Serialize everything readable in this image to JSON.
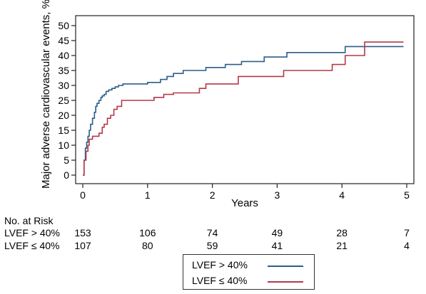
{
  "chart_data": {
    "type": "line",
    "title": "",
    "xlabel": "Years",
    "ylabel": "Major adverse cardiovascular events, %",
    "xlim": [
      0,
      5
    ],
    "ylim": [
      0,
      50
    ],
    "x_ticks": [
      "0",
      "1",
      "2",
      "3",
      "4",
      "5"
    ],
    "y_ticks": [
      "0",
      "5",
      "10",
      "15",
      "20",
      "25",
      "30",
      "35",
      "40",
      "45",
      "50"
    ],
    "grid": false,
    "legend_position": "bottom-center",
    "series": [
      {
        "name": "LVEF > 40%",
        "color": "#2b5d8a",
        "step": true,
        "x": [
          0,
          0.02,
          0.04,
          0.06,
          0.08,
          0.1,
          0.12,
          0.15,
          0.18,
          0.2,
          0.22,
          0.25,
          0.28,
          0.3,
          0.33,
          0.36,
          0.4,
          0.45,
          0.5,
          0.55,
          0.62,
          0.7,
          0.8,
          0.9,
          1.0,
          1.1,
          1.2,
          1.3,
          1.4,
          1.55,
          1.7,
          1.9,
          2.1,
          2.2,
          2.3,
          2.45,
          2.8,
          3.15,
          3.6,
          4.05,
          4.95
        ],
        "y": [
          0,
          5,
          9,
          11,
          13,
          15,
          17,
          19,
          21,
          23,
          24,
          25,
          26,
          26.5,
          27,
          28,
          28.5,
          29,
          29.5,
          30,
          30.5,
          30.5,
          30.5,
          30.5,
          31,
          31,
          32,
          33,
          34,
          35,
          35,
          36,
          36,
          37,
          37,
          38,
          39.5,
          41,
          41,
          43,
          43
        ]
      },
      {
        "name": "LVEF ≤ 40%",
        "color": "#b23a48",
        "step": true,
        "x": [
          0,
          0.02,
          0.05,
          0.08,
          0.1,
          0.15,
          0.22,
          0.25,
          0.3,
          0.33,
          0.38,
          0.43,
          0.48,
          0.53,
          0.6,
          1.1,
          1.25,
          1.4,
          1.8,
          1.9,
          2.3,
          2.4,
          2.7,
          2.95,
          3.05,
          3.1,
          3.5,
          3.85,
          4.05,
          4.35,
          4.95
        ],
        "y": [
          0,
          5,
          8,
          10,
          12,
          13,
          13,
          14,
          16,
          17,
          19,
          20,
          22,
          23,
          25,
          26,
          27,
          27.5,
          29,
          30.5,
          30.5,
          33,
          33,
          33,
          33,
          35,
          35,
          37,
          40,
          44.5,
          44.5
        ]
      }
    ],
    "risk_table": {
      "title": "No. at Risk",
      "times": [
        0,
        1,
        2,
        3,
        4,
        5
      ],
      "rows": [
        {
          "label": "LVEF > 40%",
          "values": [
            "153",
            "106",
            "74",
            "49",
            "28",
            "7"
          ]
        },
        {
          "label": "LVEF ≤ 40%",
          "values": [
            "107",
            "80",
            "59",
            "41",
            "21",
            "4"
          ]
        }
      ]
    }
  }
}
